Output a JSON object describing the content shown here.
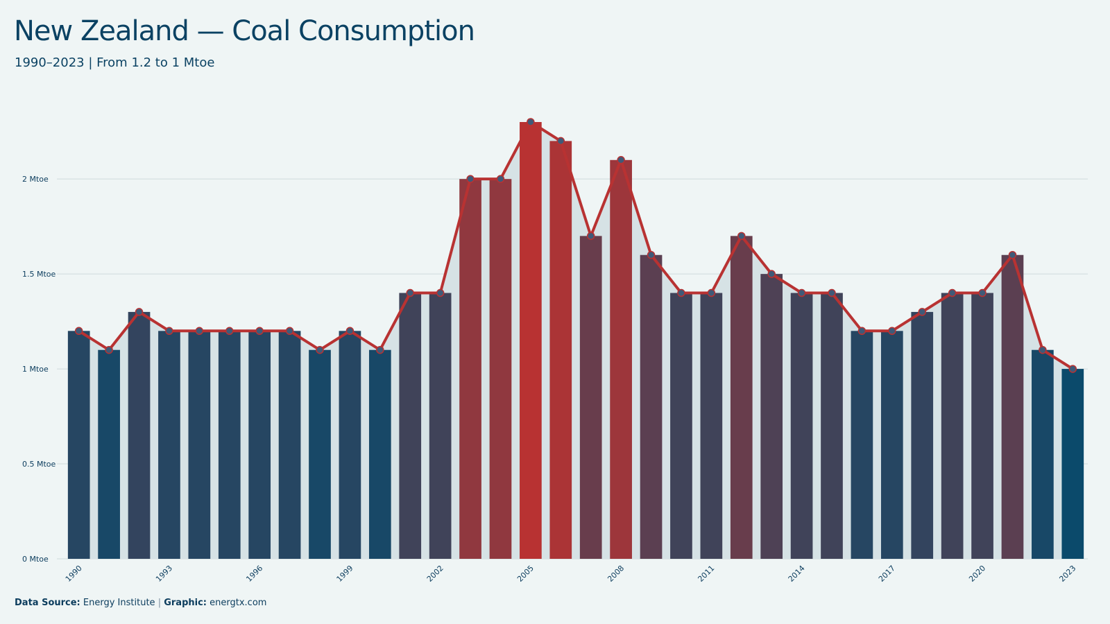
{
  "header": {
    "title": "New Zealand — Coal Consumption",
    "subtitle": "1990–2023 | From 1.2 to 1 Mtoe"
  },
  "footer": {
    "source_label": "Data Source:",
    "source_value": "Energy Institute",
    "separator": "|",
    "graphic_label": "Graphic:",
    "graphic_value": "energtx.com"
  },
  "chart_data": {
    "type": "bar",
    "x": [
      1990,
      1991,
      1992,
      1993,
      1994,
      1995,
      1996,
      1997,
      1998,
      1999,
      2000,
      2001,
      2002,
      2003,
      2004,
      2005,
      2006,
      2007,
      2008,
      2009,
      2010,
      2011,
      2012,
      2013,
      2014,
      2015,
      2016,
      2017,
      2018,
      2019,
      2020,
      2021,
      2022,
      2023
    ],
    "values": [
      1.2,
      1.1,
      1.3,
      1.2,
      1.2,
      1.2,
      1.2,
      1.2,
      1.1,
      1.2,
      1.1,
      1.4,
      1.4,
      2.0,
      2.0,
      2.3,
      2.2,
      1.7,
      2.1,
      1.6,
      1.4,
      1.4,
      1.7,
      1.5,
      1.4,
      1.4,
      1.2,
      1.2,
      1.3,
      1.4,
      1.4,
      1.6,
      1.1,
      1.0
    ],
    "overlay": "line-with-markers",
    "x_tick_labels": [
      "1990",
      "1993",
      "1996",
      "1999",
      "2002",
      "2005",
      "2008",
      "2011",
      "2014",
      "2017",
      "2020",
      "2023"
    ],
    "y_ticks": [
      0,
      0.5,
      1,
      1.5,
      2
    ],
    "y_tick_labels": [
      "0 Mtoe",
      "0.5 Mtoe",
      "1 Mtoe",
      "1.5 Mtoe",
      "2 Mtoe"
    ],
    "ylim": [
      0,
      2.3
    ],
    "grid": true,
    "colors": {
      "low": "#0b4a6b",
      "high": "#b83232",
      "line": "#b83232",
      "marker": "#3f5a78",
      "area": "#d6e2e5",
      "grid": "#cfdadc"
    }
  }
}
